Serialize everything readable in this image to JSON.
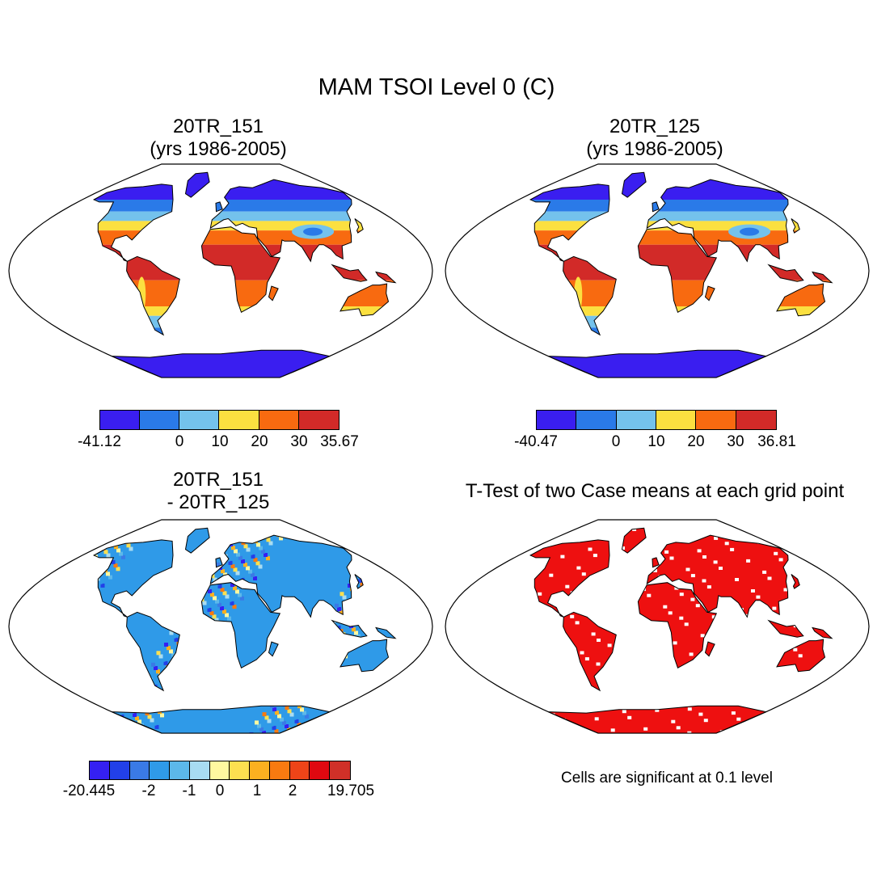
{
  "figure": {
    "title": "MAM TSOI Level 0 (C)"
  },
  "panels": [
    {
      "id": "case1",
      "title_line1": "20TR_151",
      "title_line2": "(yrs 1986-2005)",
      "colorbar": {
        "colors": [
          "#3a1ef0",
          "#2a7ae8",
          "#74c2ec",
          "#fbe040",
          "#f86a10",
          "#d22a28"
        ],
        "labels": [
          "-41.12",
          "0",
          "10",
          "20",
          "30",
          "35.67"
        ]
      }
    },
    {
      "id": "case2",
      "title_line1": "20TR_125",
      "title_line2": "(yrs 1986-2005)",
      "colorbar": {
        "colors": [
          "#3a1ef0",
          "#2a7ae8",
          "#74c2ec",
          "#fbe040",
          "#f86a10",
          "#d22a28"
        ],
        "labels": [
          "-40.47",
          "0",
          "10",
          "20",
          "30",
          "36.81"
        ]
      }
    },
    {
      "id": "diff",
      "title_line1": "20TR_151",
      "title_line2": "- 20TR_125",
      "colorbar": {
        "colors": [
          "#3520f2",
          "#2240e8",
          "#3a7ae6",
          "#2f9ae8",
          "#5cb8ea",
          "#a8dcf2",
          "#fff8a0",
          "#fde050",
          "#fbb020",
          "#f87a10",
          "#ee4418",
          "#e00810",
          "#d03028"
        ],
        "labels": [
          "-20.445",
          "-2",
          "-1",
          "0",
          "1",
          "2",
          "19.705"
        ]
      }
    },
    {
      "id": "ttest",
      "title_line1": "T-Test of two Case means at each grid point",
      "note": "Cells are significant at 0.1 level",
      "fill_color": "#ee1010"
    }
  ]
}
